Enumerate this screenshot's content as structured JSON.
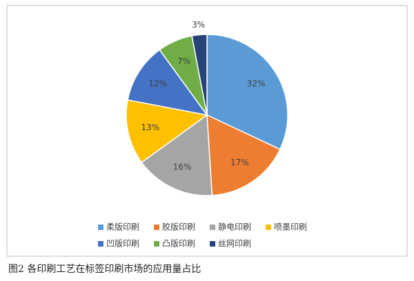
{
  "chart_data": {
    "type": "pie",
    "categories": [
      "柔版印刷",
      "胶版印刷",
      "静电印刷",
      "喷墨印刷",
      "凹版印刷",
      "凸版印刷",
      "丝网印刷"
    ],
    "values": [
      32,
      17,
      16,
      13,
      12,
      7,
      3
    ],
    "value_labels": [
      "32%",
      "17%",
      "16%",
      "13%",
      "12%",
      "7%",
      "3%"
    ],
    "colors": [
      "#5b9bd5",
      "#ed7d31",
      "#a5a5a5",
      "#ffc000",
      "#4472c4",
      "#70ad47",
      "#264478"
    ],
    "caption": "图2 各印刷工艺在标签印刷市场的应用量占比"
  }
}
